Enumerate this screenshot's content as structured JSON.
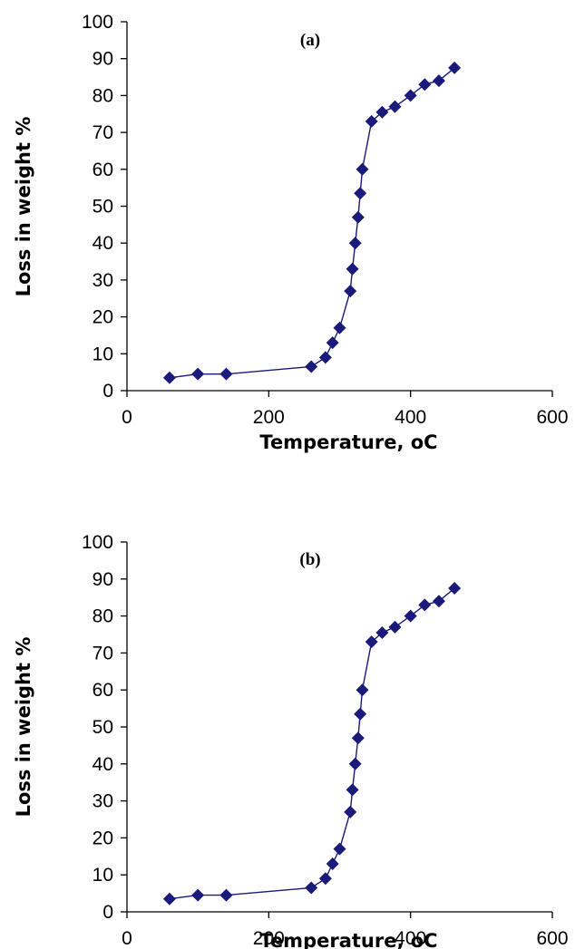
{
  "chart_data": [
    {
      "type": "scatter",
      "panel_label": "(a)",
      "xlabel": "Temperature, oC",
      "ylabel": "Loss in weight %",
      "xlim": [
        0,
        600
      ],
      "ylim": [
        0,
        100
      ],
      "x_ticks": [
        "0",
        "200",
        "400",
        "600"
      ],
      "y_ticks": [
        "0",
        "10",
        "20",
        "30",
        "40",
        "50",
        "60",
        "70",
        "80",
        "90",
        "100"
      ],
      "marker": "diamond",
      "line": true,
      "grid": false,
      "series_color": "#1a1a7a",
      "x": [
        60,
        100,
        140,
        260,
        280,
        290,
        300,
        315,
        318,
        322,
        326,
        329,
        332,
        345,
        360,
        378,
        400,
        420,
        440,
        462
      ],
      "y": [
        3.5,
        4.5,
        4.5,
        6.5,
        9,
        13,
        17,
        27,
        33,
        40,
        47,
        53.5,
        60,
        73,
        75.5,
        77,
        80,
        83,
        84,
        87.5
      ]
    },
    {
      "type": "scatter",
      "panel_label": "(b)",
      "xlabel": "Temperature, oC",
      "ylabel": "Loss in weight %",
      "xlim": [
        0,
        600
      ],
      "ylim": [
        0,
        100
      ],
      "x_ticks": [
        "0",
        "200",
        "400",
        "600"
      ],
      "y_ticks": [
        "0",
        "10",
        "20",
        "30",
        "40",
        "50",
        "60",
        "70",
        "80",
        "90",
        "100"
      ],
      "marker": "diamond",
      "line": true,
      "grid": false,
      "series_color": "#1a1a7a",
      "x": [
        60,
        100,
        140,
        260,
        280,
        290,
        300,
        315,
        318,
        322,
        326,
        329,
        332,
        345,
        360,
        378,
        400,
        420,
        440,
        462
      ],
      "y": [
        3.5,
        4.5,
        4.5,
        6.5,
        9,
        13,
        17,
        27,
        33,
        40,
        47,
        53.5,
        60,
        73,
        75.5,
        77,
        80,
        83,
        84,
        87.5
      ]
    }
  ]
}
